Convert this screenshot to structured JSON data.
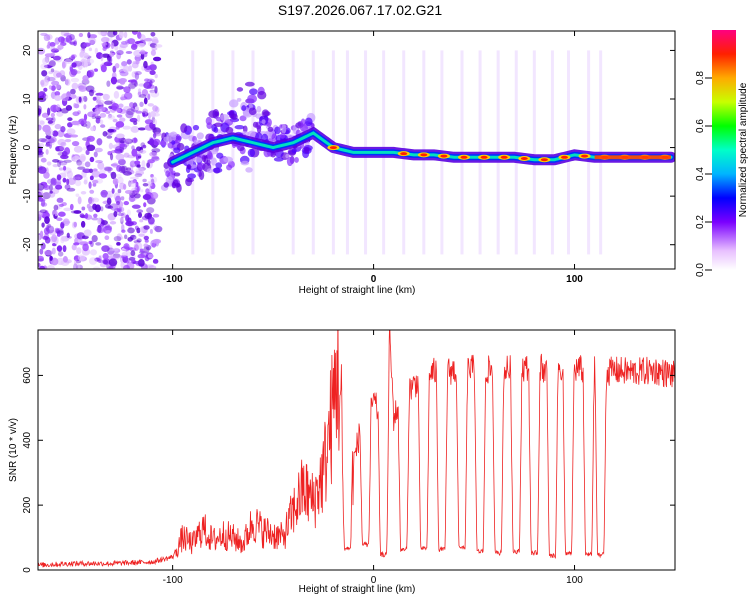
{
  "figure_title": "S197.2026.067.17.02.G21",
  "chart_data": [
    {
      "type": "heatmap",
      "title": "S197.2026.067.17.02.G21",
      "xlabel": "Height of straight line (km)",
      "ylabel": "Frequency (Hz)",
      "xlim": [
        -167,
        150
      ],
      "ylim": [
        -25,
        24
      ],
      "x_ticks": [
        -100,
        0,
        100
      ],
      "y_ticks": [
        -20,
        -10,
        0,
        10,
        20
      ],
      "colorbar": {
        "label": "Normalized spectral amplitude",
        "range": [
          0.0,
          1.0
        ],
        "ticks": [
          "0.0",
          "0.2",
          "0.4",
          "0.6",
          "0.8"
        ]
      },
      "ridge": {
        "description": "dominant frequency ridge",
        "x": [
          -100,
          -90,
          -80,
          -70,
          -60,
          -50,
          -40,
          -30,
          -20,
          -10,
          0,
          10,
          20,
          30,
          40,
          50,
          60,
          70,
          80,
          90,
          100,
          110,
          120,
          130,
          140,
          148
        ],
        "y": [
          -3,
          -1,
          1,
          2,
          1,
          0,
          1,
          3,
          0,
          -1,
          -1,
          -1,
          -1.5,
          -1.5,
          -2,
          -2,
          -2,
          -2,
          -2.5,
          -2.5,
          -1.5,
          -2,
          -2,
          -2,
          -2,
          -2
        ],
        "peak_amplitude": 0.9
      }
    },
    {
      "type": "line",
      "xlabel": "Height of straight line (km)",
      "ylabel": "SNR (10 * v/v)",
      "xlim": [
        -167,
        150
      ],
      "ylim": [
        0,
        740
      ],
      "x_ticks": [
        -100,
        0,
        100
      ],
      "y_ticks": [
        0,
        200,
        400,
        600
      ],
      "series": [
        {
          "name": "SNR",
          "color": "#ee2222",
          "x": [
            -167,
            -150,
            -130,
            -110,
            -100,
            -95,
            -90,
            -85,
            -80,
            -75,
            -70,
            -65,
            -60,
            -55,
            -50,
            -45,
            -40,
            -35,
            -30,
            -25,
            -20,
            -18,
            -15,
            -12,
            -10,
            -5,
            0,
            5,
            8,
            10,
            15,
            20,
            25,
            30,
            40,
            50,
            60,
            70,
            80,
            90,
            100,
            110,
            115,
            120,
            130,
            140,
            150
          ],
          "y": [
            15,
            20,
            20,
            25,
            40,
            100,
            80,
            130,
            90,
            110,
            100,
            80,
            150,
            120,
            110,
            100,
            180,
            250,
            210,
            300,
            500,
            640,
            380,
            500,
            330,
            480,
            520,
            450,
            730,
            470,
            540,
            570,
            600,
            610,
            615,
            620,
            615,
            620,
            625,
            620,
            620,
            615,
            610,
            615,
            610,
            615,
            600
          ]
        }
      ],
      "dropouts": {
        "description": "periodic sharp drops of the SNR",
        "x": [
          -13,
          -4,
          5,
          15,
          25,
          34,
          44,
          53,
          62,
          71,
          80,
          89,
          97,
          107,
          113
        ],
        "y": [
          60,
          70,
          40,
          55,
          60,
          55,
          60,
          50,
          45,
          50,
          45,
          35,
          45,
          40,
          40
        ]
      }
    }
  ]
}
